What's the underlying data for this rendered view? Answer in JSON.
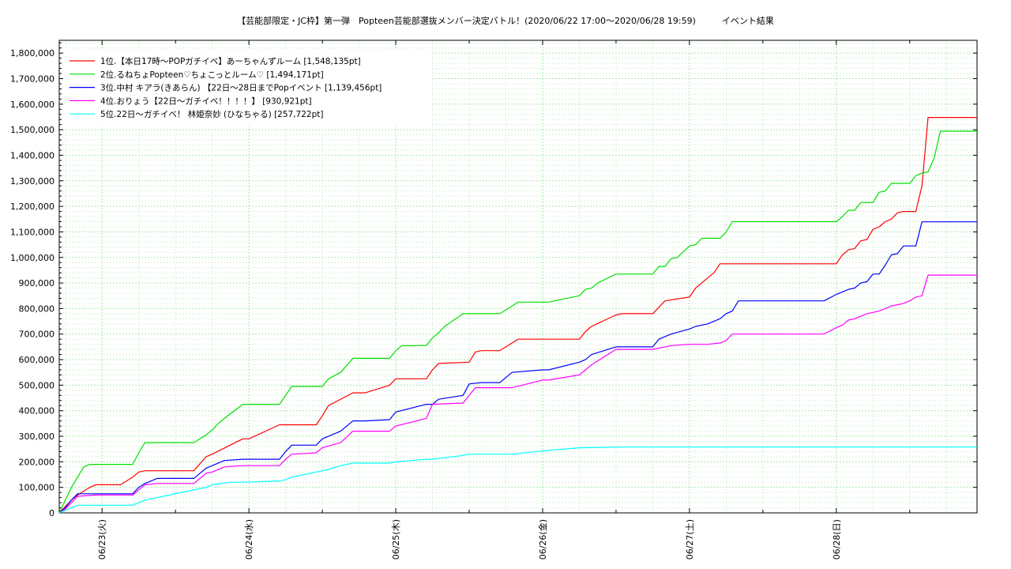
{
  "chart_data": {
    "type": "line",
    "title": "【芸能部限定・JC枠】第一弾　Popteen芸能部選抜メンバー決定バトル！(2020/06/22 17:00～2020/06/28 19:59)　　　イベント結果",
    "xlabel": "",
    "ylabel": "",
    "x_unit": "hours since 2020/06/22 17:00",
    "xlim": [
      0,
      150
    ],
    "ylim": [
      0,
      1850000
    ],
    "y_ticks": [
      0,
      100000,
      200000,
      300000,
      400000,
      500000,
      600000,
      700000,
      800000,
      900000,
      1000000,
      1100000,
      1200000,
      1300000,
      1400000,
      1500000,
      1600000,
      1700000,
      1800000
    ],
    "y_tick_labels": [
      "0",
      "100,000",
      "200,000",
      "300,000",
      "400,000",
      "500,000",
      "600,000",
      "700,000",
      "800,000",
      "900,000",
      "1,000,000",
      "1,100,000",
      "1,200,000",
      "1,300,000",
      "1,400,000",
      "1,500,000",
      "1,600,000",
      "1,700,000",
      "1,800,000"
    ],
    "x_ticks": [
      7,
      31,
      55,
      79,
      103,
      127
    ],
    "x_tick_labels": [
      "06/23(火)",
      "06/24(水)",
      "06/25(木)",
      "06/26(金)",
      "06/27(土)",
      "06/28(日)"
    ],
    "grid": true,
    "legend_position": "top-left",
    "series": [
      {
        "name": "1位.【本日17時〜POPガチイベ】あーちゃんずルーム [1,548,135pt]",
        "color": "#ff0000",
        "x": [
          0,
          1,
          2,
          3,
          4,
          5,
          6,
          10,
          12,
          13,
          14,
          22,
          24,
          25,
          30,
          31,
          36,
          37,
          42,
          43,
          44,
          48,
          50,
          54,
          55,
          60,
          61,
          62,
          67,
          68,
          69,
          72,
          74,
          75,
          79,
          80,
          85,
          86,
          87,
          91,
          92,
          93,
          97,
          98,
          99,
          103,
          104,
          105,
          106,
          107,
          108,
          109,
          110,
          111,
          112,
          113,
          114,
          115,
          116,
          117,
          118,
          119,
          120,
          127,
          128,
          129,
          130,
          131,
          132,
          133,
          134,
          135,
          136,
          137,
          138,
          139,
          140,
          141,
          142,
          143,
          144,
          145,
          146,
          147,
          148,
          149,
          150
        ],
        "y": [
          0,
          25000,
          50000,
          70000,
          85000,
          100000,
          110000,
          110000,
          140000,
          160000,
          165000,
          165000,
          220000,
          230000,
          290000,
          290000,
          345000,
          345000,
          345000,
          380000,
          420000,
          470000,
          470000,
          500000,
          525000,
          525000,
          560000,
          585000,
          590000,
          630000,
          635000,
          635000,
          665000,
          680000,
          680000,
          680000,
          680000,
          710000,
          730000,
          775000,
          780000,
          780000,
          780000,
          805000,
          830000,
          845000,
          880000,
          900000,
          920000,
          940000,
          975000,
          975000,
          975000,
          975000,
          975000,
          975000,
          975000,
          975000,
          975000,
          975000,
          975000,
          975000,
          975000,
          975000,
          1010000,
          1030000,
          1035000,
          1065000,
          1070000,
          1110000,
          1120000,
          1140000,
          1150000,
          1175000,
          1180000,
          1180000,
          1180000,
          1280000,
          1548135,
          1548135,
          1548135,
          1548135,
          1548135,
          1548135,
          1548135,
          1548135,
          1548135
        ]
      },
      {
        "name": "2位.るねちょPopteen♡ちょこっとルーム♡ [1,494,171pt]",
        "color": "#00e000",
        "x": [
          0,
          1,
          2,
          3,
          4,
          5,
          6,
          12,
          13,
          14,
          22,
          24,
          25,
          26,
          27,
          30,
          36,
          37,
          38,
          40,
          43,
          44,
          46,
          48,
          54,
          55,
          56,
          60,
          61,
          62,
          63,
          66,
          67,
          68,
          72,
          74,
          75,
          79,
          80,
          85,
          86,
          87,
          88,
          91,
          92,
          93,
          97,
          98,
          99,
          100,
          101,
          103,
          104,
          105,
          106,
          108,
          109,
          110,
          127,
          128,
          129,
          130,
          131,
          132,
          133,
          134,
          135,
          136,
          137,
          138,
          139,
          140,
          141,
          142,
          143,
          144,
          145,
          146,
          147,
          148,
          149,
          150
        ],
        "y": [
          0,
          50000,
          100000,
          140000,
          180000,
          190000,
          190000,
          190000,
          235000,
          275000,
          275000,
          305000,
          325000,
          350000,
          370000,
          425000,
          425000,
          460000,
          495000,
          495000,
          495000,
          525000,
          550000,
          605000,
          605000,
          635000,
          655000,
          655000,
          685000,
          705000,
          730000,
          780000,
          780000,
          780000,
          780000,
          810000,
          825000,
          825000,
          825000,
          850000,
          875000,
          880000,
          900000,
          935000,
          935000,
          935000,
          935000,
          965000,
          965000,
          995000,
          1000000,
          1045000,
          1050000,
          1075000,
          1075000,
          1075000,
          1100000,
          1140000,
          1140000,
          1160000,
          1185000,
          1185000,
          1215000,
          1215000,
          1215000,
          1255000,
          1260000,
          1290000,
          1290000,
          1290000,
          1290000,
          1320000,
          1330000,
          1335000,
          1390000,
          1494171,
          1494171,
          1494171,
          1494171,
          1494171,
          1494171,
          1494171
        ]
      },
      {
        "name": "3位.中村 キアラ(きあらん) 【22日〜28日までPopイベント [1,139,456pt]",
        "color": "#0000ff",
        "x": [
          0,
          1,
          2,
          3,
          6,
          12,
          13,
          14,
          16,
          18,
          22,
          24,
          25,
          27,
          30,
          36,
          37,
          38,
          42,
          43,
          46,
          48,
          50,
          54,
          55,
          60,
          61,
          62,
          66,
          67,
          69,
          72,
          74,
          79,
          80,
          85,
          86,
          87,
          91,
          92,
          93,
          97,
          98,
          100,
          103,
          104,
          106,
          108,
          109,
          110,
          111,
          112,
          113,
          114,
          115,
          116,
          117,
          118,
          119,
          120,
          121,
          122,
          123,
          124,
          125,
          127,
          128,
          129,
          130,
          131,
          132,
          133,
          134,
          135,
          136,
          137,
          138,
          139,
          140,
          141,
          142,
          143,
          144,
          145,
          146,
          147,
          148,
          149,
          150
        ],
        "y": [
          0,
          20000,
          50000,
          75000,
          75000,
          75000,
          100000,
          115000,
          135000,
          135000,
          135000,
          175000,
          185000,
          205000,
          210000,
          210000,
          240000,
          265000,
          265000,
          290000,
          320000,
          360000,
          360000,
          365000,
          395000,
          425000,
          425000,
          445000,
          460000,
          505000,
          510000,
          510000,
          550000,
          560000,
          560000,
          590000,
          600000,
          620000,
          650000,
          650000,
          650000,
          650000,
          680000,
          700000,
          720000,
          730000,
          740000,
          760000,
          780000,
          790000,
          830000,
          830000,
          830000,
          830000,
          830000,
          830000,
          830000,
          830000,
          830000,
          830000,
          830000,
          830000,
          830000,
          830000,
          830000,
          855000,
          865000,
          875000,
          880000,
          900000,
          905000,
          935000,
          935000,
          970000,
          1010000,
          1015000,
          1045000,
          1045000,
          1045000,
          1139456,
          1139456,
          1139456,
          1139456,
          1139456,
          1139456,
          1139456,
          1139456,
          1139456,
          1139456
        ]
      },
      {
        "name": "4位.おりょう【22日〜ガチイベ！！！！】 [930,921pt]",
        "color": "#ff00ff",
        "x": [
          0,
          1,
          2,
          3,
          6,
          12,
          13,
          14,
          16,
          22,
          24,
          25,
          27,
          30,
          36,
          37,
          38,
          42,
          43,
          46,
          48,
          54,
          55,
          60,
          61,
          66,
          67,
          68,
          72,
          74,
          79,
          80,
          85,
          86,
          87,
          91,
          92,
          93,
          97,
          98,
          100,
          103,
          104,
          106,
          108,
          109,
          110,
          111,
          112,
          113,
          114,
          115,
          116,
          117,
          118,
          119,
          120,
          121,
          122,
          123,
          124,
          125,
          127,
          128,
          129,
          130,
          131,
          132,
          133,
          134,
          135,
          136,
          137,
          138,
          139,
          140,
          141,
          142,
          143,
          144,
          145,
          146,
          147,
          148,
          149,
          150
        ],
        "y": [
          0,
          15000,
          40000,
          65000,
          70000,
          70000,
          90000,
          110000,
          115000,
          115000,
          155000,
          160000,
          180000,
          185000,
          185000,
          210000,
          230000,
          235000,
          255000,
          275000,
          320000,
          320000,
          340000,
          370000,
          425000,
          430000,
          460000,
          490000,
          490000,
          490000,
          520000,
          520000,
          540000,
          560000,
          580000,
          640000,
          640000,
          640000,
          640000,
          645000,
          655000,
          660000,
          660000,
          660000,
          665000,
          675000,
          700000,
          700000,
          700000,
          700000,
          700000,
          700000,
          700000,
          700000,
          700000,
          700000,
          700000,
          700000,
          700000,
          700000,
          700000,
          700000,
          725000,
          735000,
          755000,
          760000,
          770000,
          780000,
          785000,
          790000,
          800000,
          810000,
          815000,
          820000,
          830000,
          845000,
          850000,
          930921,
          930921,
          930921,
          930921,
          930921,
          930921,
          930921,
          930921,
          930921
        ]
      },
      {
        "name": "5位.22日〜ガチイベ！ 林姫奈妙 (ひなちゃる) [257,722pt]",
        "color": "#00ffff",
        "x": [
          0,
          1,
          2,
          3,
          6,
          12,
          13,
          14,
          16,
          18,
          20,
          22,
          24,
          25,
          28,
          30,
          36,
          37,
          38,
          40,
          42,
          44,
          46,
          48,
          54,
          55,
          60,
          61,
          66,
          67,
          72,
          74,
          80,
          85,
          92,
          97,
          103,
          110,
          127,
          150
        ],
        "y": [
          0,
          10000,
          20000,
          30000,
          30000,
          30000,
          40000,
          50000,
          60000,
          70000,
          80000,
          90000,
          100000,
          110000,
          120000,
          120000,
          125000,
          130000,
          140000,
          150000,
          160000,
          170000,
          185000,
          195000,
          195000,
          200000,
          210000,
          210000,
          225000,
          230000,
          230000,
          230000,
          245000,
          255000,
          257722,
          257722,
          257722,
          257722,
          257722,
          257722
        ]
      }
    ]
  }
}
